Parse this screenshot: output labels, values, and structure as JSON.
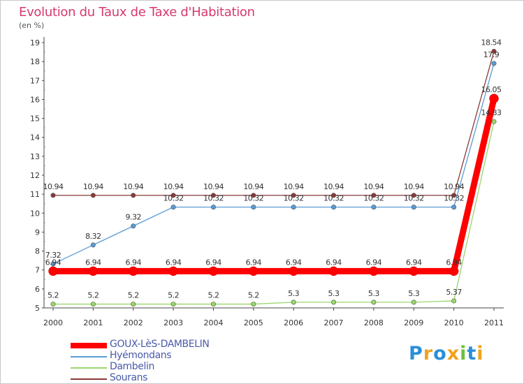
{
  "title": "Evolution du Taux de Taxe d'Habitation",
  "subtitle": "(en %)",
  "logo": {
    "letters": [
      "P",
      "r",
      "o",
      "x",
      "i",
      "t",
      "i"
    ],
    "colors": [
      "#2a8fd8",
      "#f2a21b",
      "#2a8fd8",
      "#f2a21b",
      "#6cbf3a",
      "#2a8fd8",
      "#f2a21b"
    ]
  },
  "chart_data": {
    "type": "line",
    "title": "Evolution du Taux de Taxe d'Habitation",
    "ylabel": "(en %)",
    "xlabel": "",
    "x": [
      "2000",
      "2001",
      "2002",
      "2003",
      "2004",
      "2005",
      "2006",
      "2007",
      "2008",
      "2009",
      "2010",
      "2011"
    ],
    "ylim": [
      5,
      19
    ],
    "yticks": [
      "5",
      "6",
      "7",
      "8",
      "9",
      "10",
      "11",
      "12",
      "13",
      "14",
      "15",
      "16",
      "17",
      "18",
      "19"
    ],
    "grid": false,
    "legend_position": "bottom-left",
    "series": [
      {
        "name": "GOUX-LèS-DAMBELIN",
        "color": "#ff0000",
        "values": [
          6.94,
          6.94,
          6.94,
          6.94,
          6.94,
          6.94,
          6.94,
          6.94,
          6.94,
          6.94,
          6.94,
          16.05
        ],
        "labels": [
          "6.94",
          "6.94",
          "6.94",
          "6.94",
          "6.94",
          "6.94",
          "6.94",
          "6.94",
          "6.94",
          "6.94",
          "6.94",
          "16.05"
        ],
        "emphasis": true
      },
      {
        "name": "Hyémondans",
        "color": "#5b9bd5",
        "values": [
          7.32,
          8.32,
          9.32,
          10.32,
          10.32,
          10.32,
          10.32,
          10.32,
          10.32,
          10.32,
          10.32,
          17.9
        ],
        "labels": [
          "7.32",
          "8.32",
          "9.32",
          "10.32",
          "10.32",
          "10.32",
          "10.32",
          "10.32",
          "10.32",
          "10.32",
          "10.32",
          "17.9"
        ],
        "emphasis": false
      },
      {
        "name": "Dambelin",
        "color": "#9ad66b",
        "values": [
          5.2,
          5.2,
          5.2,
          5.2,
          5.2,
          5.2,
          5.3,
          5.3,
          5.3,
          5.3,
          5.37,
          14.83
        ],
        "labels": [
          "5.2",
          "5.2",
          "5.2",
          "5.2",
          "5.2",
          "5.2",
          "5.3",
          "5.3",
          "5.3",
          "5.3",
          "5.37",
          "14.83"
        ],
        "emphasis": false
      },
      {
        "name": "Sourans",
        "color": "#8b3a3a",
        "values": [
          10.94,
          10.94,
          10.94,
          10.94,
          10.94,
          10.94,
          10.94,
          10.94,
          10.94,
          10.94,
          10.94,
          18.54
        ],
        "labels": [
          "10.94",
          "10.94",
          "10.94",
          "10.94",
          "10.94",
          "10.94",
          "10.94",
          "10.94",
          "10.94",
          "10.94",
          "10.94",
          "18.54"
        ],
        "emphasis": false
      }
    ]
  }
}
